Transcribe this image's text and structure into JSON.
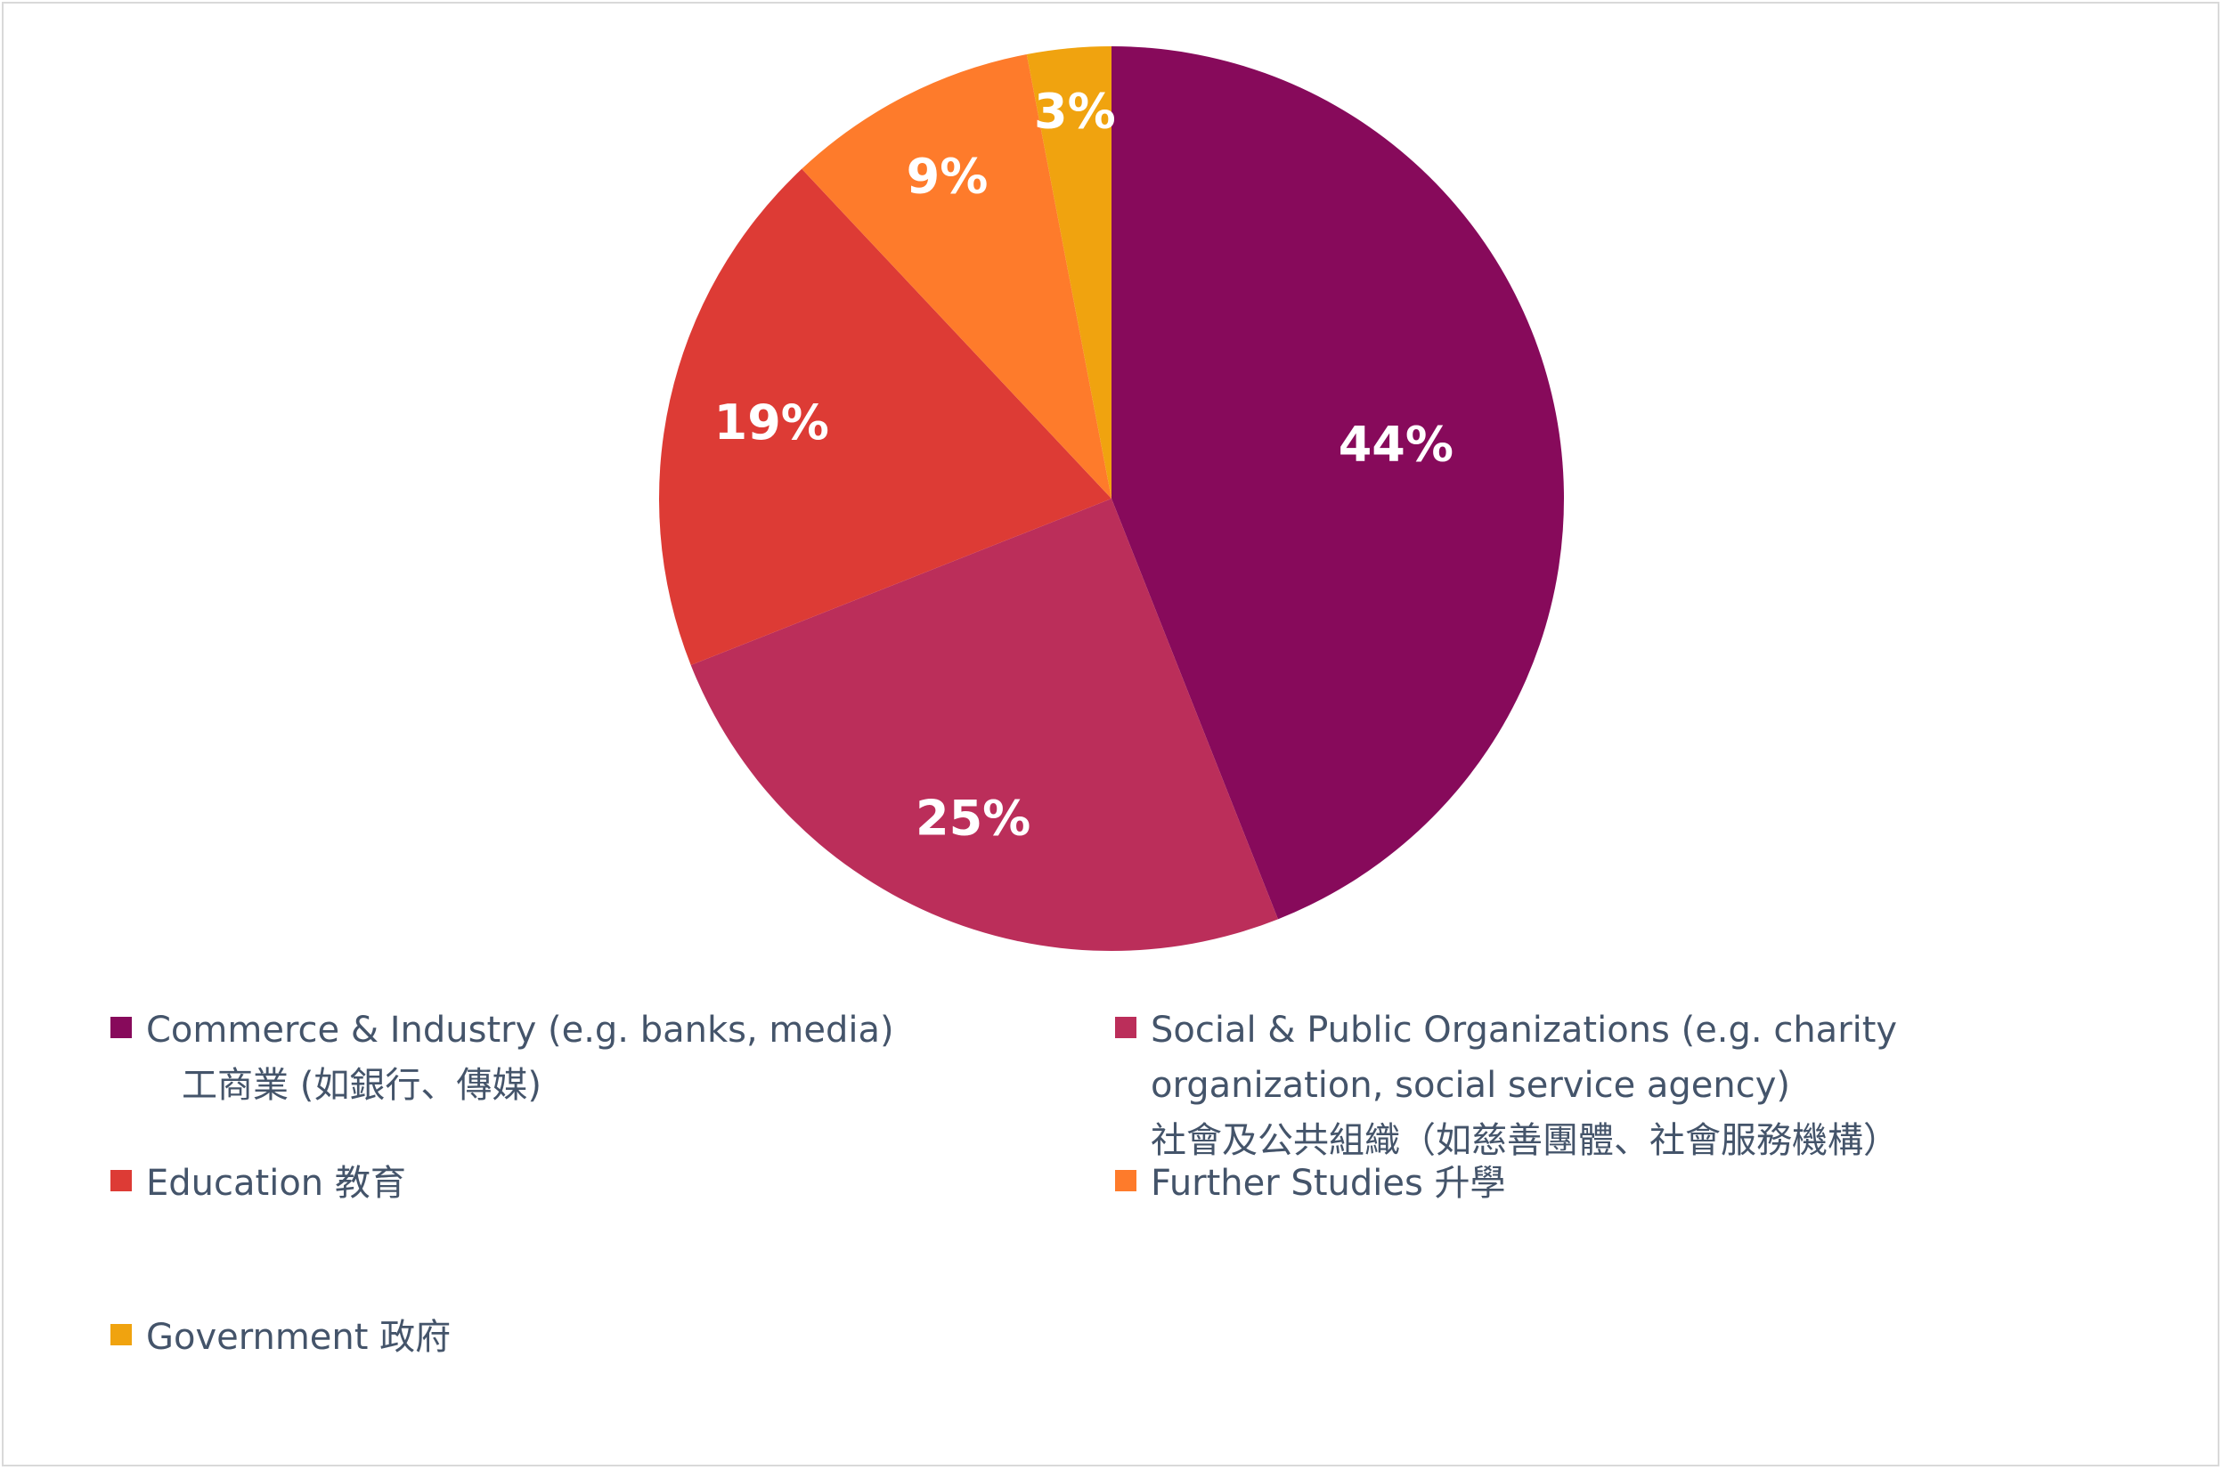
{
  "chart_data": {
    "type": "pie",
    "title": "",
    "slices": [
      {
        "label_en": "Commerce & Industry (e.g. banks, media)",
        "label_zh": "工商業 (如銀行、傳媒)",
        "value": 44,
        "label": "44%",
        "color": "#870a5b"
      },
      {
        "label_en": "Social & Public Organizations (e.g. charity organization, social service agency)",
        "label_zh": "社會及公共組織（如慈善團體、社會服務機構）",
        "value": 25,
        "label": "25%",
        "color": "#bb2e5a"
      },
      {
        "label_en": "Education",
        "label_zh": "教育",
        "value": 19,
        "label": "19%",
        "color": "#dd3b35"
      },
      {
        "label_en": "Further Studies",
        "label_zh": "升學",
        "value": 9,
        "label": "9%",
        "color": "#fe7b2b"
      },
      {
        "label_en": "Government",
        "label_zh": "政府",
        "value": 3,
        "label": "3%",
        "color": "#f0a30f"
      }
    ],
    "legend_position": "bottom",
    "start_angle": "12 o'clock",
    "direction": "clockwise"
  },
  "legend": [
    {
      "swatch": "#870a5b",
      "lines": [
        "Commerce & Industry (e.g. banks, media)",
        "工商業 (如銀行、傳媒)"
      ]
    },
    {
      "swatch": "#bb2e5a",
      "lines": [
        "Social & Public Organizations (e.g. charity",
        "organization, social service agency)",
        "社會及公共組織（如慈善團體、社會服務機構）"
      ]
    },
    {
      "swatch": "#dd3b35",
      "lines": [
        "Education 教育"
      ]
    },
    {
      "swatch": "#fe7b2b",
      "lines": [
        "Further Studies 升學"
      ]
    },
    {
      "swatch": "#f0a30f",
      "lines": [
        "Government 政府"
      ]
    }
  ]
}
